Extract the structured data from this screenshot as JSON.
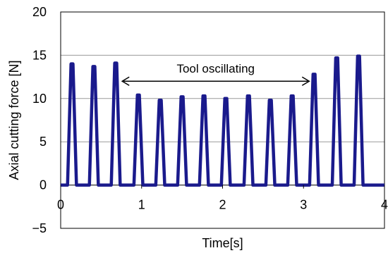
{
  "chart_data": {
    "type": "line",
    "xlabel": "Time[s]",
    "ylabel": "Axial cutting force [N]",
    "xlim": [
      0,
      4
    ],
    "ylim": [
      -5,
      20
    ],
    "x_ticks": [
      "0",
      "1",
      "2",
      "3",
      "4"
    ],
    "y_ticks": [
      "-5",
      "0",
      "5",
      "10",
      "15",
      "20"
    ],
    "grid": "horizontal",
    "series": [
      {
        "color": "#1a1a8c",
        "peaks": [
          {
            "x": 0.14,
            "y": 14.0
          },
          {
            "x": 0.41,
            "y": 13.7
          },
          {
            "x": 0.68,
            "y": 14.1
          },
          {
            "x": 0.96,
            "y": 10.4
          },
          {
            "x": 1.23,
            "y": 9.8
          },
          {
            "x": 1.5,
            "y": 10.2
          },
          {
            "x": 1.77,
            "y": 10.3
          },
          {
            "x": 2.04,
            "y": 10.0
          },
          {
            "x": 2.32,
            "y": 10.3
          },
          {
            "x": 2.59,
            "y": 9.8
          },
          {
            "x": 2.86,
            "y": 10.3
          },
          {
            "x": 3.13,
            "y": 12.8
          },
          {
            "x": 3.41,
            "y": 14.7
          },
          {
            "x": 3.68,
            "y": 14.9
          }
        ],
        "baseline": 0
      }
    ],
    "annotations": [
      {
        "text": "Tool oscillating",
        "x_start": 0.76,
        "x_end": 3.07,
        "y": 12.0
      }
    ]
  }
}
